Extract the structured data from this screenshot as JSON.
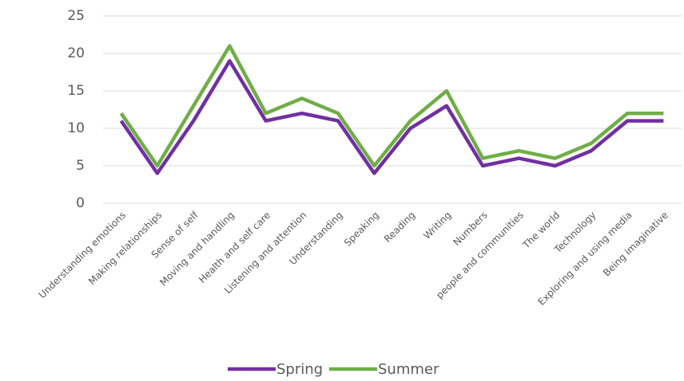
{
  "chart_data": {
    "type": "line",
    "categories": [
      "Understanding emotions",
      "Making relationships",
      "Sense of self",
      "Moving and handling",
      "Health and self care",
      "Listening and attention",
      "Understanding",
      "Speaking",
      "Reading",
      "Writing",
      "Numbers",
      "people and communities",
      "The world",
      "Technology",
      "Exploring and using media",
      "Being imaginative"
    ],
    "series": [
      {
        "name": "Spring",
        "color": "#7030a0",
        "values": [
          11,
          4,
          11,
          19,
          11,
          12,
          11,
          4,
          10,
          13,
          5,
          6,
          5,
          7,
          11,
          11
        ]
      },
      {
        "name": "Summer",
        "color": "#70ad47",
        "values": [
          12,
          5,
          13,
          21,
          12,
          14,
          12,
          5,
          11,
          15,
          6,
          7,
          6,
          8,
          12,
          12
        ]
      }
    ],
    "ylim": [
      0,
      25
    ],
    "yticks": [
      0,
      5,
      10,
      15,
      20,
      25
    ],
    "grid": true,
    "legend": "bottom"
  }
}
